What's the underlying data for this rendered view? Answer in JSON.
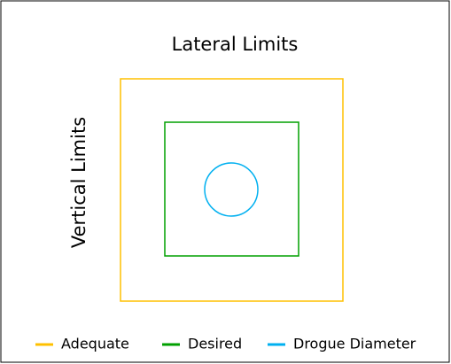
{
  "title": "Lateral Limits",
  "side_label": "Vertical Limits",
  "legend": [
    {
      "name": "Adequate",
      "color": "#ffc000"
    },
    {
      "name": "Desired",
      "color": "#00a000"
    },
    {
      "name": "Drogue Diameter",
      "color": "#00b0f0"
    }
  ]
}
